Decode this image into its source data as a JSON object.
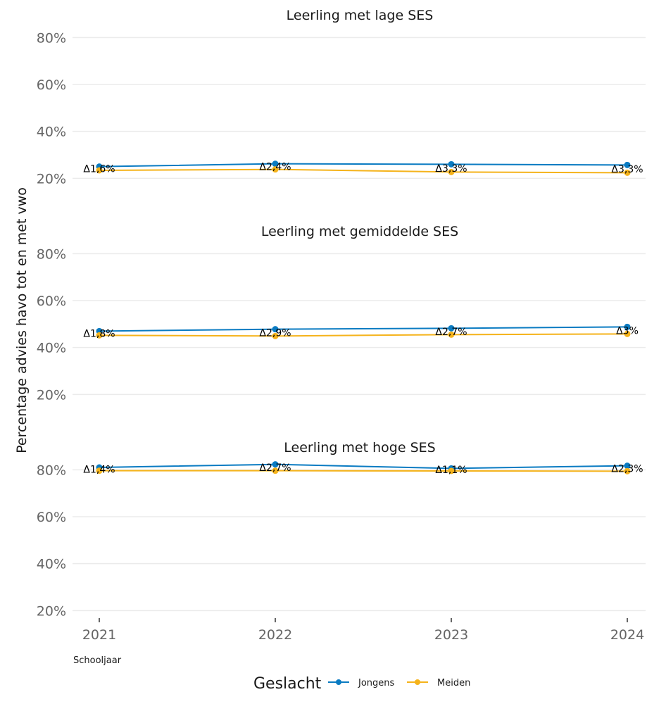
{
  "chart_data": {
    "type": "line",
    "ylabel": "Percentage advies havo tot en met vwo",
    "xlabel": "Schooljaar",
    "x": [
      "2021",
      "2022",
      "2023",
      "2024"
    ],
    "y_ticks": [
      "20%",
      "40%",
      "60%",
      "80%"
    ],
    "ylim": [
      18,
      84
    ],
    "legend": {
      "title": "Geslacht",
      "position": "bottom",
      "items": [
        {
          "name": "Jongens",
          "color": "#0a7bc2"
        },
        {
          "name": "Meiden",
          "color": "#f5b31b"
        }
      ]
    },
    "panels": [
      {
        "title": "Leerling met lage SES",
        "series": [
          {
            "name": "Jongens",
            "color": "#0a7bc2",
            "values": [
              25.0,
              26.2,
              26.0,
              25.7
            ]
          },
          {
            "name": "Meiden",
            "color": "#f5b31b",
            "values": [
              23.4,
              23.8,
              22.7,
              22.4
            ]
          }
        ],
        "diff_labels": [
          "Δ1,6%",
          "Δ2,4%",
          "Δ3,3%",
          "Δ3,3%"
        ]
      },
      {
        "title": "Leerling met gemiddelde SES",
        "series": [
          {
            "name": "Jongens",
            "color": "#0a7bc2",
            "values": [
              47.0,
              47.8,
              48.2,
              48.8
            ]
          },
          {
            "name": "Meiden",
            "color": "#f5b31b",
            "values": [
              45.2,
              44.9,
              45.5,
              45.8
            ]
          }
        ],
        "diff_labels": [
          "Δ1,8%",
          "Δ2,9%",
          "Δ2,7%",
          "Δ3%"
        ]
      },
      {
        "title": "Leerling met hoge SES",
        "series": [
          {
            "name": "Jongens",
            "color": "#0a7bc2",
            "values": [
              81.0,
              82.3,
              80.6,
              81.7
            ]
          },
          {
            "name": "Meiden",
            "color": "#f5b31b",
            "values": [
              79.6,
              79.6,
              79.5,
              79.4
            ]
          }
        ],
        "diff_labels": [
          "Δ1,4%",
          "Δ2,7%",
          "Δ1,1%",
          "Δ2,3%"
        ]
      }
    ]
  }
}
